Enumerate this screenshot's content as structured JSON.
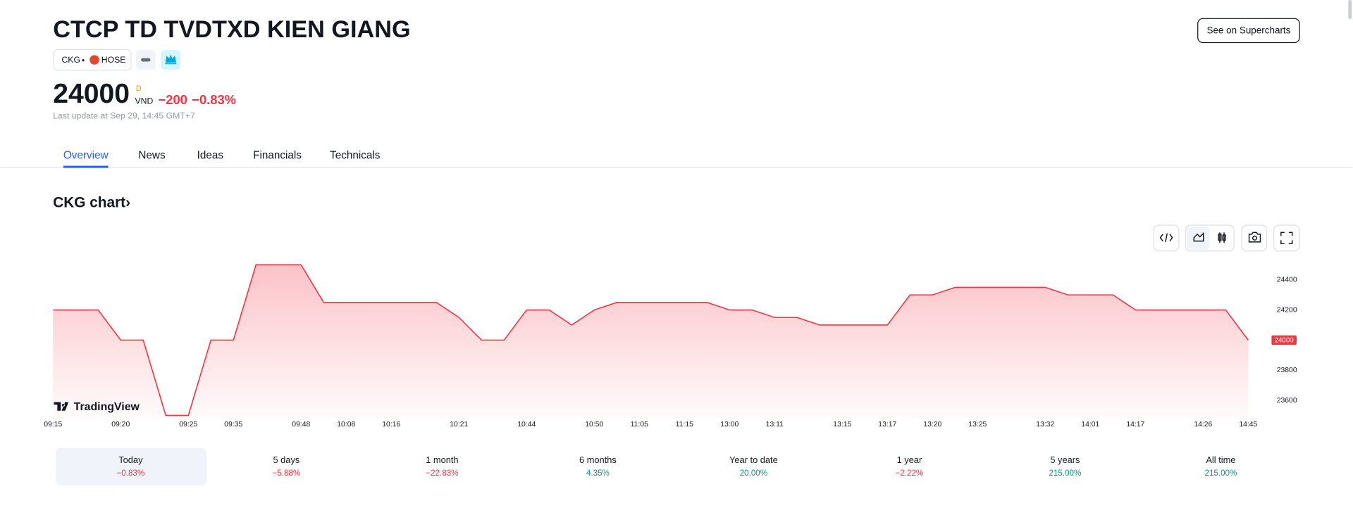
{
  "header": {
    "title": "CTCP TD TVDTXD KIEN GIANG",
    "symbol": "CKG",
    "exchange": "HOSE",
    "price": "24000",
    "price_flag": "D",
    "currency": "VND",
    "change": "−200",
    "change_percent": "−0.83%",
    "last_update": "Last update at Sep 29, 14:45 GMT+7",
    "button": "See on Supercharts"
  },
  "tabs": [
    "Overview",
    "News",
    "Ideas",
    "Financials",
    "Technicals"
  ],
  "section_title": "CKG chart›",
  "branding": "TradingView",
  "chart_data": {
    "type": "area",
    "color": "#f23645",
    "grid": false,
    "categories": [
      "09:15",
      null,
      null,
      "09:20",
      null,
      null,
      "09:25",
      null,
      "09:35",
      null,
      null,
      "09:48",
      null,
      "10:08",
      null,
      "10:16",
      null,
      null,
      "10:21",
      null,
      null,
      "10:44",
      null,
      null,
      "10:50",
      null,
      "11:05",
      null,
      "11:15",
      null,
      "13:00",
      null,
      "13:11",
      null,
      null,
      "13:15",
      null,
      "13:17",
      null,
      "13:20",
      null,
      "13:25",
      null,
      null,
      "13:32",
      null,
      "14:01",
      null,
      "14:17",
      null,
      null,
      "14:26",
      null,
      "14:45"
    ],
    "values": [
      24200,
      24200,
      24200,
      24000,
      24000,
      23500,
      23500,
      24000,
      24000,
      24500,
      24500,
      24500,
      24250,
      24250,
      24250,
      24250,
      24250,
      24250,
      24150,
      24000,
      24000,
      24200,
      24200,
      24100,
      24200,
      24250,
      24250,
      24250,
      24250,
      24250,
      24200,
      24200,
      24150,
      24150,
      24100,
      24100,
      24100,
      24100,
      24300,
      24300,
      24350,
      24350,
      24350,
      24350,
      24350,
      24300,
      24300,
      24300,
      24200,
      24200,
      24200,
      24200,
      24200,
      24000
    ],
    "ylim": [
      23480,
      24540
    ],
    "yticks": [
      23600,
      23800,
      24000,
      24200,
      24400
    ]
  },
  "periods": [
    {
      "label": "Today",
      "change": "−0.83%"
    },
    {
      "label": "5 days",
      "change": "−5.88%"
    },
    {
      "label": "1 month",
      "change": "−22.83%"
    },
    {
      "label": "6 months",
      "change": "4.35%"
    },
    {
      "label": "Year to date",
      "change": "20.00%"
    },
    {
      "label": "1 year",
      "change": "−2.22%"
    },
    {
      "label": "5 years",
      "change": "215.00%"
    },
    {
      "label": "All time",
      "change": "215.00%"
    }
  ]
}
